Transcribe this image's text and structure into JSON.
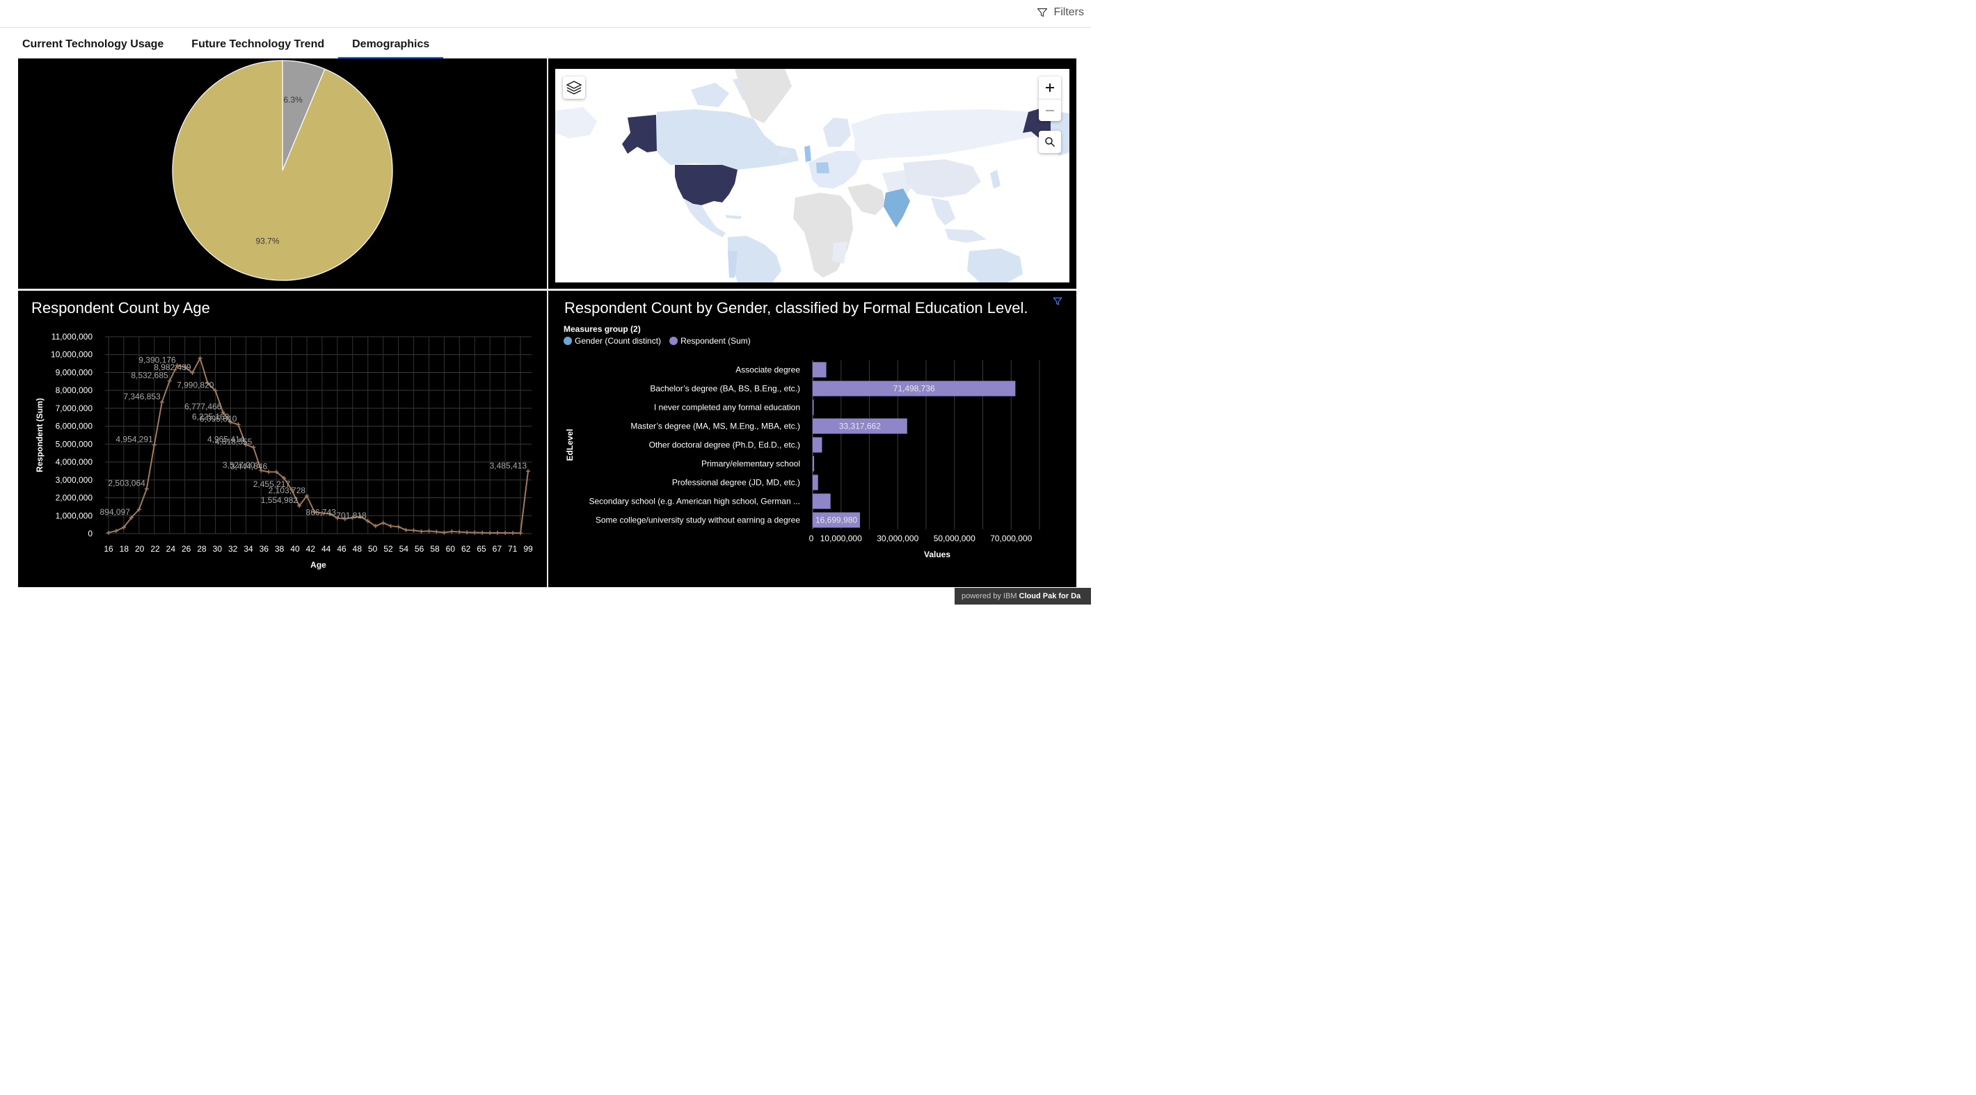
{
  "toolbar": {
    "filters_label": "Filters"
  },
  "tabs": [
    {
      "label": "Current Technology Usage",
      "active": false
    },
    {
      "label": "Future Technology Trend",
      "active": false
    },
    {
      "label": "Demographics",
      "active": true
    }
  ],
  "pie_panel": {
    "chart_data": {
      "type": "pie",
      "slices": [
        {
          "value": 6.3,
          "label": "6.3%",
          "color": "#9e9e9e"
        },
        {
          "value": 93.7,
          "label": "93.7%",
          "color": "#c9b86b"
        }
      ]
    }
  },
  "map_panel": {
    "icons": [
      "layers-icon",
      "zoom-in-icon",
      "zoom-out-icon",
      "search-icon"
    ],
    "colors": {
      "high": "#34355a",
      "mid": "#7fb1dd",
      "low": "#d6e3f3",
      "none": "#e3e3e3"
    }
  },
  "line_panel": {
    "chart_data": {
      "type": "line",
      "title": "Respondent Count by Age",
      "xlabel": "Age",
      "ylabel": "Respondent (Sum)",
      "ylim": [
        0,
        11000000
      ],
      "yticks": [
        "0",
        "1,000,000",
        "2,000,000",
        "3,000,000",
        "4,000,000",
        "5,000,000",
        "6,000,000",
        "7,000,000",
        "8,000,000",
        "9,000,000",
        "10,000,000",
        "11,000,000"
      ],
      "xtick_labels": [
        "16",
        "18",
        "20",
        "22",
        "24",
        "26",
        "28",
        "30",
        "32",
        "34",
        "36",
        "38",
        "40",
        "42",
        "44",
        "46",
        "48",
        "50",
        "52",
        "54",
        "56",
        "58",
        "60",
        "62",
        "65",
        "67",
        "71",
        "99"
      ],
      "values": [
        50000,
        150000,
        350000,
        894097,
        1350000,
        2503064,
        4954291,
        7346853,
        8532685,
        9390176,
        9300000,
        8982439,
        9800000,
        8400000,
        7990820,
        6777466,
        6225163,
        6095810,
        4965414,
        4818555,
        3527007,
        3444646,
        3444646,
        3100000,
        2455217,
        1554982,
        2103728,
        1200000,
        1150000,
        1100000,
        866743,
        820000,
        900000,
        950000,
        701818,
        420000,
        600000,
        420000,
        380000,
        200000,
        180000,
        120000,
        140000,
        100000,
        60000,
        120000,
        90000,
        70000,
        60000,
        50000,
        40000,
        45000,
        40000,
        35000,
        30000,
        3485413
      ],
      "data_labels": [
        {
          "i": 3,
          "text": "894,097"
        },
        {
          "i": 5,
          "text": "2,503,064"
        },
        {
          "i": 6,
          "text": "4,954,291"
        },
        {
          "i": 7,
          "text": "7,346,853"
        },
        {
          "i": 8,
          "text": "8,532,685"
        },
        {
          "i": 9,
          "text": "9,390,176"
        },
        {
          "i": 11,
          "text": "8,982,439"
        },
        {
          "i": 14,
          "text": "7,990,820"
        },
        {
          "i": 15,
          "text": "6,777,466"
        },
        {
          "i": 16,
          "text": "6,225,163"
        },
        {
          "i": 17,
          "text": "6,095,810"
        },
        {
          "i": 18,
          "text": "4,965,414"
        },
        {
          "i": 19,
          "text": "4,818,555"
        },
        {
          "i": 20,
          "text": "3,527,007"
        },
        {
          "i": 21,
          "text": "3,444,646"
        },
        {
          "i": 24,
          "text": "2,455,217"
        },
        {
          "i": 26,
          "text": "2,103,728"
        },
        {
          "i": 25,
          "text": "1,554,982"
        },
        {
          "i": 30,
          "text": "866,743"
        },
        {
          "i": 34,
          "text": "701,818"
        },
        {
          "i": 55,
          "text": "3,485,413"
        }
      ],
      "color": "#a07a5a"
    }
  },
  "bar_panel": {
    "chart_data": {
      "type": "bar",
      "title": "Respondent Count by Gender, classified by Formal Education Level.",
      "legend_title": "Measures group (2)",
      "legend": [
        {
          "name": "Gender (Count distinct)",
          "color": "#6ea6d6"
        },
        {
          "name": "Respondent (Sum)",
          "color": "#8f85c9"
        }
      ],
      "ylabel": "EdLevel",
      "xlabel": "Values",
      "xlim": [
        0,
        80000000
      ],
      "xticks": [
        {
          "v": 0,
          "label": "0"
        },
        {
          "v": 10000000,
          "label": "10,000,000"
        },
        {
          "v": 30000000,
          "label": "30,000,000"
        },
        {
          "v": 50000000,
          "label": "50,000,000"
        },
        {
          "v": 70000000,
          "label": "70,000,000"
        }
      ],
      "categories": [
        "Associate degree",
        "Bachelor’s degree (BA, BS, B.Eng., etc.)",
        "I never completed any formal education",
        "Master’s degree (MA, MS, M.Eng., MBA, etc.)",
        "Other doctoral degree (Ph.D, Ed.D., etc.)",
        "Primary/elementary school",
        "Professional degree (JD, MD, etc.)",
        "Secondary school (e.g. American high school, German ...",
        "Some college/university study without earning a degree"
      ],
      "values": [
        4800000,
        71498736,
        150000,
        33317662,
        3300000,
        500000,
        1900000,
        6300000,
        16699980
      ],
      "value_labels": [
        "",
        "71,498,736",
        "",
        "33,317,662",
        "",
        "",
        "",
        "",
        "16,699,980"
      ],
      "color": "#8f85c9"
    }
  },
  "footer": {
    "powered_prefix": "powered by IBM ",
    "powered_brand": "Cloud Pak for Da"
  }
}
